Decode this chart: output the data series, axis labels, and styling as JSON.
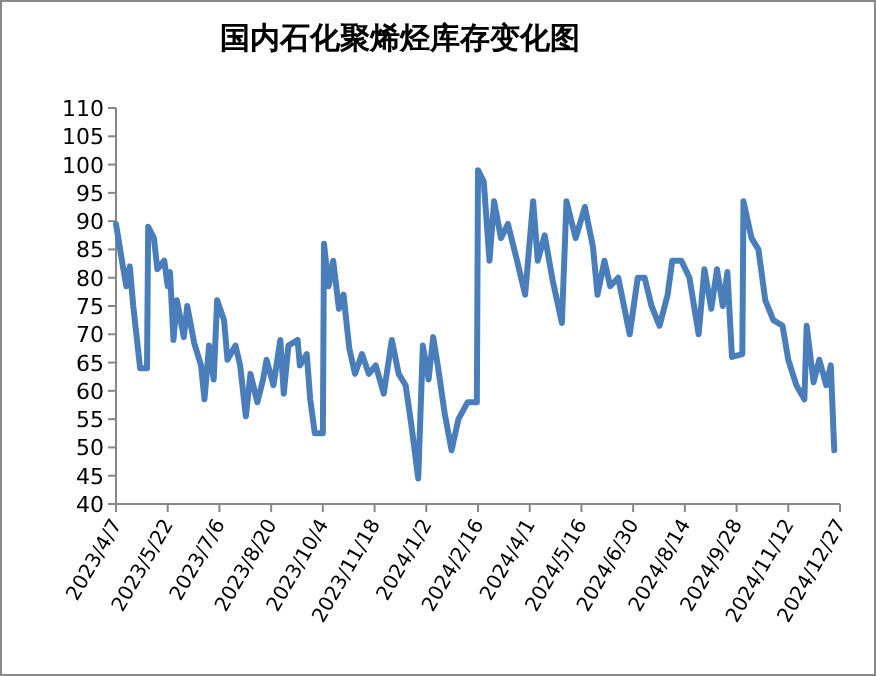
{
  "chart_data": {
    "type": "line",
    "title": "国内石化聚烯烃库存变化图",
    "x": [
      "2023-04-07",
      "2023-04-13",
      "2023-04-16",
      "2023-04-19",
      "2023-04-22",
      "2023-04-28",
      "2023-05-04",
      "2023-05-05",
      "2023-05-10",
      "2023-05-13",
      "2023-05-19",
      "2023-05-22",
      "2023-05-24",
      "2023-05-27",
      "2023-05-30",
      "2023-06-05",
      "2023-06-08",
      "2023-06-14",
      "2023-06-20",
      "2023-06-23",
      "2023-06-27",
      "2023-07-01",
      "2023-07-04",
      "2023-07-10",
      "2023-07-13",
      "2023-07-20",
      "2023-07-24",
      "2023-07-29",
      "2023-08-02",
      "2023-08-08",
      "2023-08-13",
      "2023-08-16",
      "2023-08-22",
      "2023-08-28",
      "2023-08-31",
      "2023-09-04",
      "2023-09-12",
      "2023-09-14",
      "2023-09-20",
      "2023-09-23",
      "2023-09-27",
      "2023-10-04",
      "2023-10-05",
      "2023-10-09",
      "2023-10-13",
      "2023-10-18",
      "2023-10-22",
      "2023-10-27",
      "2023-11-01",
      "2023-11-07",
      "2023-11-13",
      "2023-11-19",
      "2023-11-26",
      "2023-12-03",
      "2023-12-09",
      "2023-12-15",
      "2023-12-20",
      "2023-12-26",
      "2023-12-30",
      "2024-01-04",
      "2024-01-08",
      "2024-01-12",
      "2024-01-18",
      "2024-01-24",
      "2024-01-30",
      "2024-02-07",
      "2024-02-15",
      "2024-02-16",
      "2024-02-21",
      "2024-02-26",
      "2024-03-01",
      "2024-03-07",
      "2024-03-13",
      "2024-03-21",
      "2024-03-28",
      "2024-04-04",
      "2024-04-08",
      "2024-04-14",
      "2024-04-21",
      "2024-04-29",
      "2024-05-03",
      "2024-05-11",
      "2024-05-19",
      "2024-05-26",
      "2024-05-30",
      "2024-06-05",
      "2024-06-10",
      "2024-06-17",
      "2024-06-23",
      "2024-06-27",
      "2024-07-04",
      "2024-07-10",
      "2024-07-16",
      "2024-07-23",
      "2024-07-30",
      "2024-08-03",
      "2024-08-11",
      "2024-08-18",
      "2024-08-26",
      "2024-08-31",
      "2024-09-06",
      "2024-09-11",
      "2024-09-16",
      "2024-09-20",
      "2024-09-24",
      "2024-10-03",
      "2024-10-04",
      "2024-10-11",
      "2024-10-17",
      "2024-10-23",
      "2024-10-30",
      "2024-11-07",
      "2024-11-12",
      "2024-11-19",
      "2024-11-26",
      "2024-11-28",
      "2024-12-04",
      "2024-12-09",
      "2024-12-15",
      "2024-12-19",
      "2024-12-22"
    ],
    "series": [
      {
        "color": "#4a7ebb",
        "values": [
          89.5,
          82,
          78.5,
          82,
          75,
          64,
          64,
          89,
          87,
          81.5,
          83,
          78.5,
          81,
          69,
          76,
          69.5,
          75,
          68.5,
          64.5,
          58.5,
          68,
          62,
          76,
          72.5,
          65.5,
          68,
          64.5,
          55.5,
          63,
          58,
          62,
          65.5,
          61,
          69,
          59.5,
          68,
          69,
          64.5,
          66.5,
          58.5,
          52.5,
          52.5,
          86,
          78.5,
          83,
          74.5,
          77,
          67.5,
          63,
          66.5,
          63,
          64.5,
          59.5,
          69,
          63,
          61,
          54,
          44.5,
          68,
          62,
          69.5,
          64.5,
          56,
          49.5,
          55,
          58,
          58,
          99,
          97,
          83,
          93.5,
          87,
          89.5,
          83,
          77,
          93.5,
          83,
          87.5,
          79.5,
          72,
          93.5,
          87,
          92.5,
          85.5,
          77,
          83,
          78.5,
          80,
          74,
          70,
          80,
          80,
          75,
          71.5,
          77,
          83,
          83,
          80,
          70,
          81.5,
          74.5,
          81.5,
          75,
          81,
          66,
          66.5,
          93.5,
          87,
          85,
          76,
          72.5,
          71.5,
          65.5,
          61,
          58.5,
          71.5,
          61.5,
          65.5,
          61,
          64.5,
          49.5
        ]
      }
    ],
    "xlim": [
      "2023-04-07",
      "2024-12-27"
    ],
    "xticks": [
      {
        "value": "2023-04-07",
        "label": "2023/4/7"
      },
      {
        "value": "2023-05-22",
        "label": "2023/5/22"
      },
      {
        "value": "2023-07-06",
        "label": "2023/7/6"
      },
      {
        "value": "2023-08-20",
        "label": "2023/8/20"
      },
      {
        "value": "2023-10-04",
        "label": "2023/10/4"
      },
      {
        "value": "2023-11-18",
        "label": "2023/11/18"
      },
      {
        "value": "2024-01-02",
        "label": "2024/1/2"
      },
      {
        "value": "2024-02-16",
        "label": "2024/2/16"
      },
      {
        "value": "2024-04-01",
        "label": "2024/4/1"
      },
      {
        "value": "2024-05-16",
        "label": "2024/5/16"
      },
      {
        "value": "2024-06-30",
        "label": "2024/6/30"
      },
      {
        "value": "2024-08-14",
        "label": "2024/8/14"
      },
      {
        "value": "2024-09-28",
        "label": "2024/9/28"
      },
      {
        "value": "2024-11-12",
        "label": "2024/11/12"
      },
      {
        "value": "2024-12-27",
        "label": "2024/12/27"
      }
    ],
    "ylim": [
      40,
      110
    ],
    "yticks": [
      40,
      45,
      50,
      55,
      60,
      65,
      70,
      75,
      80,
      85,
      90,
      95,
      100,
      105,
      110
    ],
    "grid": false,
    "marker": "none",
    "line_style": "solid"
  }
}
